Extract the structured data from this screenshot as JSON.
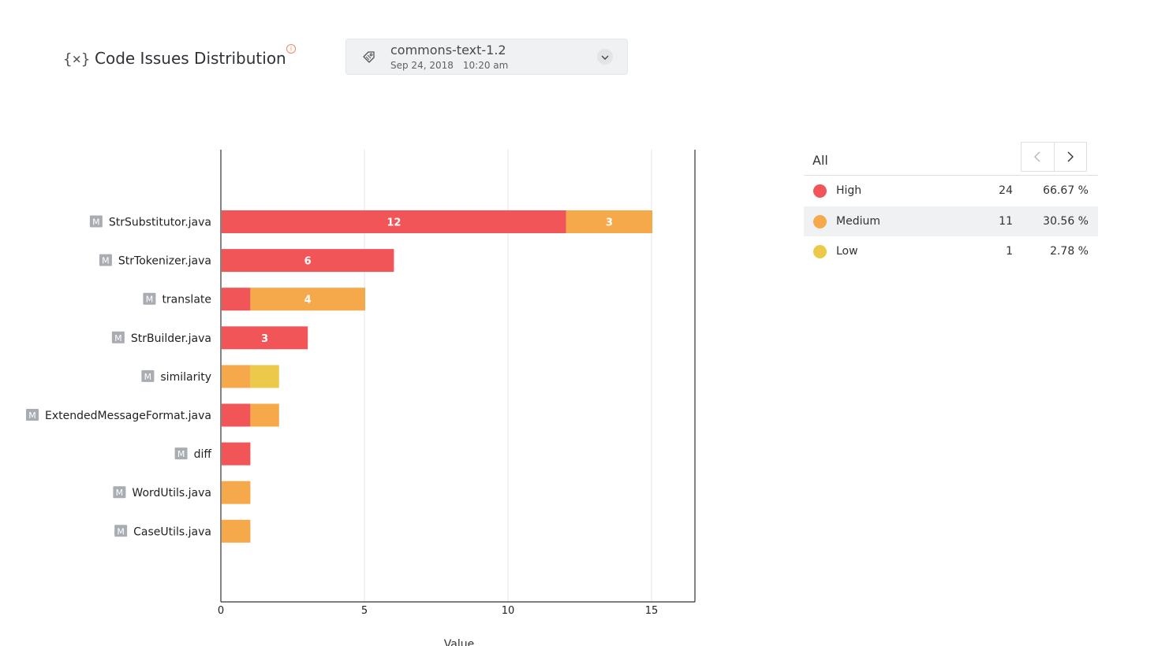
{
  "header": {
    "title": "Code Issues Distribution",
    "info_glyph": "i"
  },
  "version": {
    "name": "commons-text-1.2",
    "date": "Sep 24, 2018",
    "time": "10:20 am"
  },
  "legend": {
    "heading": "All",
    "rows": [
      {
        "label": "High",
        "count": "24",
        "percent": "66.67 %",
        "color": "#f25557"
      },
      {
        "label": "Medium",
        "count": "11",
        "percent": "30.56 %",
        "color": "#f5a94a"
      },
      {
        "label": "Low",
        "count": "1",
        "percent": "2.78 %",
        "color": "#ecc94a"
      }
    ]
  },
  "chart_data": {
    "type": "bar",
    "orientation": "horizontal",
    "stacked": true,
    "categories": [
      "StrSubstitutor.java",
      "StrTokenizer.java",
      "translate",
      "StrBuilder.java",
      "similarity",
      "ExtendedMessageFormat.java",
      "diff",
      "WordUtils.java",
      "CaseUtils.java"
    ],
    "category_badge": "M",
    "series": [
      {
        "name": "High",
        "color": "#f25557",
        "values": [
          12,
          6,
          1,
          3,
          0,
          1,
          1,
          0,
          0
        ]
      },
      {
        "name": "Medium",
        "color": "#f5a94a",
        "values": [
          3,
          0,
          4,
          0,
          1,
          1,
          0,
          1,
          1
        ]
      },
      {
        "name": "Low",
        "color": "#ecc94a",
        "values": [
          0,
          0,
          0,
          0,
          1,
          0,
          0,
          0,
          0
        ]
      }
    ],
    "xlim": [
      0,
      16.5
    ],
    "xticks": [
      0,
      5,
      10,
      15
    ],
    "xlabel": "Value",
    "grid": true,
    "data_labels_min_value": 3
  }
}
